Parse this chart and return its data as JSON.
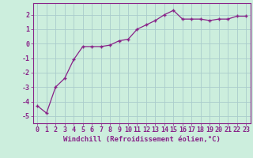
{
  "x": [
    0,
    1,
    2,
    3,
    4,
    5,
    6,
    7,
    8,
    9,
    10,
    11,
    12,
    13,
    14,
    15,
    16,
    17,
    18,
    19,
    20,
    21,
    22,
    23
  ],
  "y": [
    -4.3,
    -4.8,
    -3.0,
    -2.4,
    -1.1,
    -0.2,
    -0.2,
    -0.2,
    -0.1,
    0.2,
    0.3,
    1.0,
    1.3,
    1.6,
    2.0,
    2.3,
    1.7,
    1.7,
    1.7,
    1.6,
    1.7,
    1.7,
    1.9,
    1.9
  ],
  "line_color": "#882288",
  "bg_color": "#cceedd",
  "grid_color": "#aacccc",
  "xlabel": "Windchill (Refroidissement éolien,°C)",
  "xlim": [
    -0.5,
    23.5
  ],
  "ylim": [
    -5.5,
    2.8
  ],
  "xtick_labels": [
    "0",
    "1",
    "2",
    "3",
    "4",
    "5",
    "6",
    "7",
    "8",
    "9",
    "10",
    "11",
    "12",
    "13",
    "14",
    "15",
    "16",
    "17",
    "18",
    "19",
    "20",
    "21",
    "22",
    "23"
  ],
  "yticks": [
    -5,
    -4,
    -3,
    -2,
    -1,
    0,
    1,
    2
  ],
  "xlabel_fontsize": 6.5,
  "tick_fontsize": 6.0,
  "marker": "+"
}
